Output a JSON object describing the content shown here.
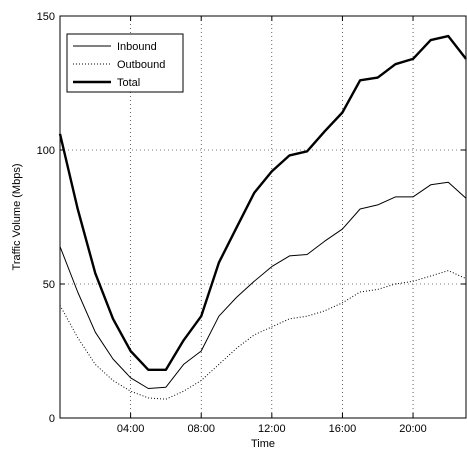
{
  "chart_data": {
    "type": "line",
    "xlabel": "Time",
    "ylabel": "Traffic Volume (Mbps)",
    "xlim": [
      0,
      23
    ],
    "ylim": [
      0,
      150
    ],
    "x_unit": "hour of day",
    "grid": true,
    "legend_position": "top-left",
    "x_ticks": [
      {
        "value": 4,
        "label": "04:00"
      },
      {
        "value": 8,
        "label": "08:00"
      },
      {
        "value": 12,
        "label": "12:00"
      },
      {
        "value": 16,
        "label": "16:00"
      },
      {
        "value": 20,
        "label": "20:00"
      }
    ],
    "y_ticks": [
      {
        "value": 0,
        "label": "0"
      },
      {
        "value": 50,
        "label": "50"
      },
      {
        "value": 100,
        "label": "100"
      },
      {
        "value": 150,
        "label": "150"
      }
    ],
    "x": [
      0,
      1,
      2,
      3,
      4,
      5,
      6,
      7,
      8,
      9,
      10,
      11,
      12,
      13,
      14,
      15,
      16,
      17,
      18,
      19,
      20,
      21,
      22,
      23
    ],
    "series": [
      {
        "name": "Inbound",
        "style": "solid",
        "color": "#000000",
        "values": [
          64,
          47,
          32,
          22,
          15,
          11,
          11.5,
          20,
          25,
          38,
          45,
          51,
          56.5,
          60.5,
          61,
          66,
          70.5,
          78,
          79.5,
          82.5,
          82.5,
          87,
          88,
          82
        ]
      },
      {
        "name": "Outbound",
        "style": "dotted",
        "color": "#000000",
        "values": [
          42,
          30,
          20,
          14,
          10,
          7.5,
          7,
          10,
          14,
          20,
          26,
          31,
          34,
          37,
          38,
          40,
          43,
          47,
          48,
          50,
          51,
          53,
          55,
          52
        ]
      },
      {
        "name": "Total",
        "style": "thick",
        "color": "#000000",
        "values": [
          106,
          78,
          54,
          37,
          25,
          18,
          18,
          29,
          38,
          58,
          71,
          84,
          92,
          98,
          99.5,
          107,
          114,
          126,
          127,
          132,
          134,
          141,
          142.5,
          134
        ]
      }
    ]
  }
}
